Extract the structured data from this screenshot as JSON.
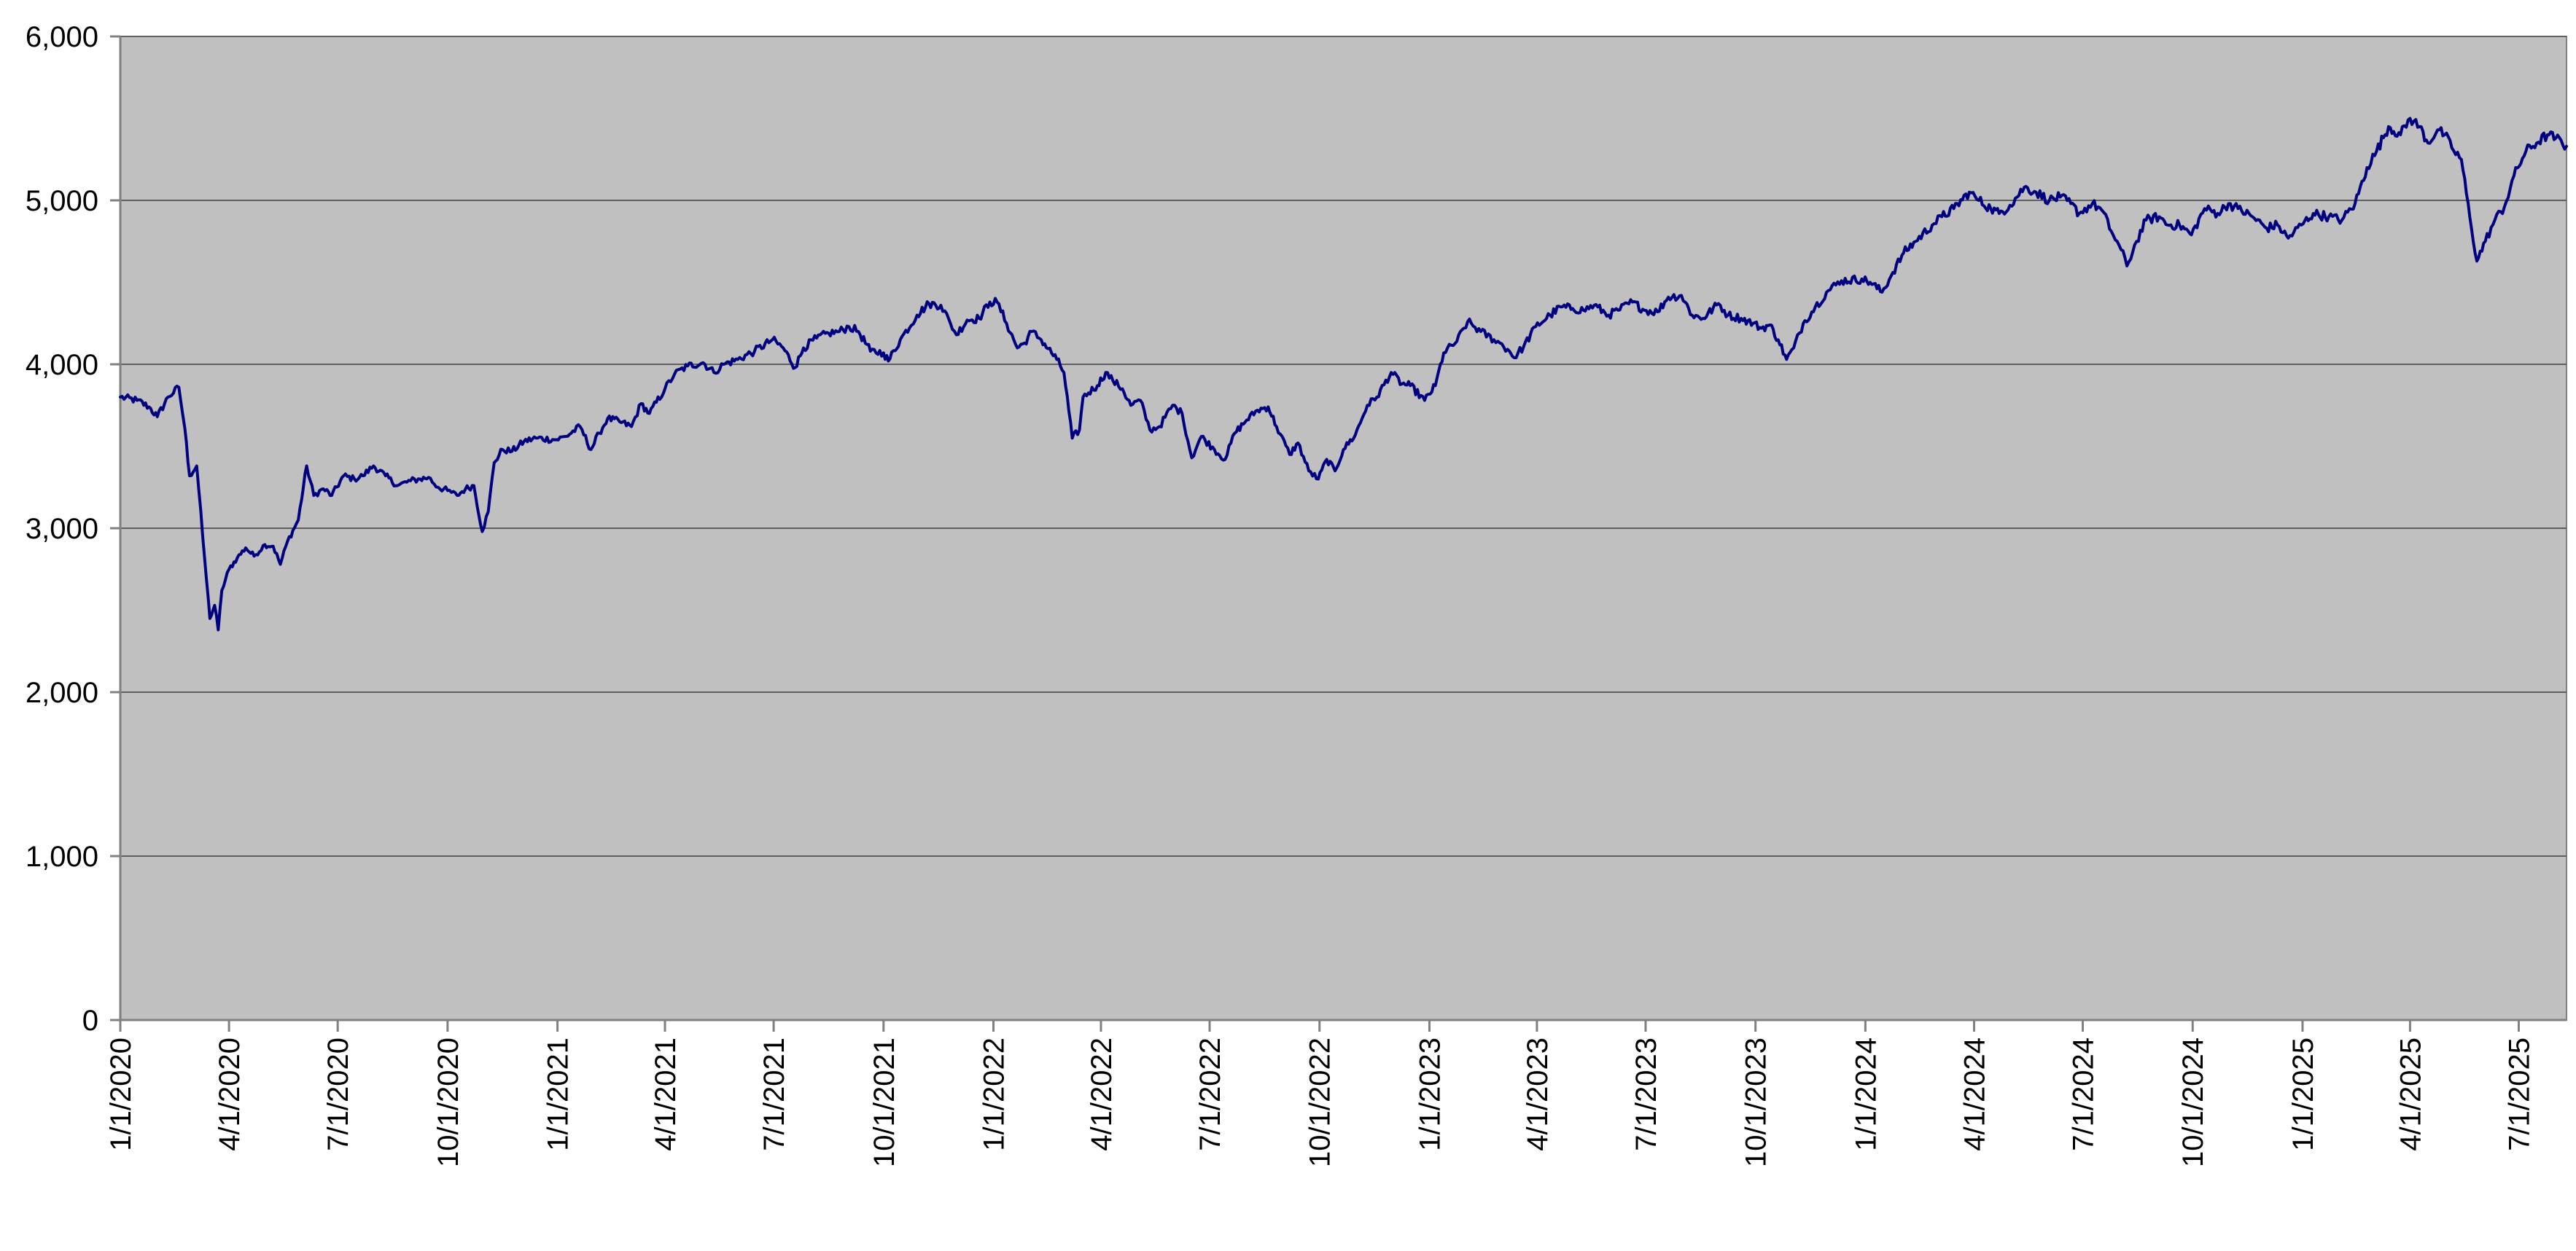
{
  "colors": {
    "plot_background": "#c0c0c0",
    "series_line": "#000080",
    "gridline": "#606060",
    "axis": "#808080"
  },
  "chart_data": {
    "type": "line",
    "title": "",
    "xlabel": "",
    "ylabel": "",
    "x_axis": {
      "type": "date",
      "range": [
        "2020-01-01",
        "2025-08-10"
      ],
      "tick_dates": [
        "2020-01-01",
        "2020-04-01",
        "2020-07-01",
        "2020-10-01",
        "2021-01-01",
        "2021-04-01",
        "2021-07-01",
        "2021-10-01",
        "2022-01-01",
        "2022-04-01",
        "2022-07-01",
        "2022-10-01",
        "2023-01-01",
        "2023-04-01",
        "2023-07-01",
        "2023-10-01",
        "2024-01-01",
        "2024-04-01",
        "2024-07-01",
        "2024-10-01",
        "2025-01-01",
        "2025-04-01",
        "2025-07-01"
      ],
      "tick_labels": [
        "1/1/2020",
        "4/1/2020",
        "7/1/2020",
        "10/1/2020",
        "1/1/2021",
        "4/1/2021",
        "7/1/2021",
        "10/1/2021",
        "1/1/2022",
        "4/1/2022",
        "7/1/2022",
        "10/1/2022",
        "1/1/2023",
        "4/1/2023",
        "7/1/2023",
        "10/1/2023",
        "1/1/2024",
        "4/1/2024",
        "7/1/2024",
        "10/1/2024",
        "1/1/2025",
        "4/1/2025",
        "7/1/2025"
      ],
      "label_orientation": "vertical"
    },
    "y_axis": {
      "range": [
        0,
        6000
      ],
      "ticks": [
        0,
        1000,
        2000,
        3000,
        4000,
        5000,
        6000
      ],
      "tick_labels": [
        "0",
        "1,000",
        "2,000",
        "3,000",
        "4,000",
        "5,000",
        "6,000"
      ]
    },
    "grid": {
      "horizontal": true,
      "vertical": false
    },
    "legend": "none",
    "series": [
      {
        "points": [
          [
            "2020-01-01",
            3800
          ],
          [
            "2020-01-15",
            3780
          ],
          [
            "2020-01-25",
            3740
          ],
          [
            "2020-02-01",
            3680
          ],
          [
            "2020-02-10",
            3800
          ],
          [
            "2020-02-19",
            3860
          ],
          [
            "2020-02-24",
            3610
          ],
          [
            "2020-02-28",
            3320
          ],
          [
            "2020-03-05",
            3380
          ],
          [
            "2020-03-10",
            2950
          ],
          [
            "2020-03-13",
            2700
          ],
          [
            "2020-03-16",
            2450
          ],
          [
            "2020-03-20",
            2530
          ],
          [
            "2020-03-23",
            2380
          ],
          [
            "2020-03-26",
            2620
          ],
          [
            "2020-04-01",
            2750
          ],
          [
            "2020-04-08",
            2820
          ],
          [
            "2020-04-15",
            2880
          ],
          [
            "2020-04-22",
            2830
          ],
          [
            "2020-05-01",
            2900
          ],
          [
            "2020-05-08",
            2890
          ],
          [
            "2020-05-14",
            2780
          ],
          [
            "2020-05-20",
            2920
          ],
          [
            "2020-05-29",
            3050
          ],
          [
            "2020-06-05",
            3380
          ],
          [
            "2020-06-11",
            3200
          ],
          [
            "2020-06-19",
            3240
          ],
          [
            "2020-06-26",
            3200
          ],
          [
            "2020-07-06",
            3320
          ],
          [
            "2020-07-15",
            3300
          ],
          [
            "2020-07-22",
            3320
          ],
          [
            "2020-07-31",
            3380
          ],
          [
            "2020-08-10",
            3320
          ],
          [
            "2020-08-20",
            3260
          ],
          [
            "2020-08-31",
            3290
          ],
          [
            "2020-09-08",
            3300
          ],
          [
            "2020-09-15",
            3310
          ],
          [
            "2020-09-23",
            3250
          ],
          [
            "2020-10-01",
            3230
          ],
          [
            "2020-10-09",
            3200
          ],
          [
            "2020-10-16",
            3240
          ],
          [
            "2020-10-23",
            3260
          ],
          [
            "2020-10-30",
            2980
          ],
          [
            "2020-11-04",
            3100
          ],
          [
            "2020-11-09",
            3400
          ],
          [
            "2020-11-16",
            3480
          ],
          [
            "2020-11-24",
            3470
          ],
          [
            "2020-12-04",
            3530
          ],
          [
            "2020-12-14",
            3550
          ],
          [
            "2020-12-31",
            3540
          ],
          [
            "2021-01-08",
            3560
          ],
          [
            "2021-01-20",
            3620
          ],
          [
            "2021-01-29",
            3480
          ],
          [
            "2021-02-05",
            3580
          ],
          [
            "2021-02-12",
            3670
          ],
          [
            "2021-02-22",
            3650
          ],
          [
            "2021-03-04",
            3620
          ],
          [
            "2021-03-12",
            3760
          ],
          [
            "2021-03-19",
            3700
          ],
          [
            "2021-04-01",
            3850
          ],
          [
            "2021-04-09",
            3940
          ],
          [
            "2021-04-20",
            3990
          ],
          [
            "2021-05-03",
            4010
          ],
          [
            "2021-05-12",
            3950
          ],
          [
            "2021-05-20",
            4000
          ],
          [
            "2021-06-01",
            4030
          ],
          [
            "2021-06-15",
            4080
          ],
          [
            "2021-06-30",
            4150
          ],
          [
            "2021-07-09",
            4100
          ],
          [
            "2021-07-19",
            3980
          ],
          [
            "2021-07-26",
            4100
          ],
          [
            "2021-08-06",
            4160
          ],
          [
            "2021-08-16",
            4190
          ],
          [
            "2021-08-25",
            4200
          ],
          [
            "2021-09-02",
            4230
          ],
          [
            "2021-09-10",
            4200
          ],
          [
            "2021-09-20",
            4080
          ],
          [
            "2021-10-01",
            4070
          ],
          [
            "2021-10-05",
            4020
          ],
          [
            "2021-10-15",
            4150
          ],
          [
            "2021-10-29",
            4300
          ],
          [
            "2021-11-08",
            4370
          ],
          [
            "2021-11-18",
            4360
          ],
          [
            "2021-11-26",
            4250
          ],
          [
            "2021-12-01",
            4180
          ],
          [
            "2021-12-10",
            4270
          ],
          [
            "2021-12-20",
            4280
          ],
          [
            "2021-12-29",
            4380
          ],
          [
            "2022-01-04",
            4380
          ],
          [
            "2022-01-12",
            4250
          ],
          [
            "2022-01-21",
            4100
          ],
          [
            "2022-01-27",
            4130
          ],
          [
            "2022-02-02",
            4200
          ],
          [
            "2022-02-10",
            4150
          ],
          [
            "2022-02-23",
            4030
          ],
          [
            "2022-03-01",
            3950
          ],
          [
            "2022-03-08",
            3550
          ],
          [
            "2022-03-14",
            3600
          ],
          [
            "2022-03-17",
            3800
          ],
          [
            "2022-03-29",
            3870
          ],
          [
            "2022-04-05",
            3950
          ],
          [
            "2022-04-11",
            3900
          ],
          [
            "2022-04-19",
            3850
          ],
          [
            "2022-04-26",
            3750
          ],
          [
            "2022-05-04",
            3780
          ],
          [
            "2022-05-12",
            3600
          ],
          [
            "2022-05-20",
            3620
          ],
          [
            "2022-05-31",
            3750
          ],
          [
            "2022-06-08",
            3700
          ],
          [
            "2022-06-16",
            3430
          ],
          [
            "2022-06-24",
            3560
          ],
          [
            "2022-07-05",
            3480
          ],
          [
            "2022-07-14",
            3420
          ],
          [
            "2022-07-22",
            3580
          ],
          [
            "2022-08-01",
            3660
          ],
          [
            "2022-08-10",
            3720
          ],
          [
            "2022-08-19",
            3740
          ],
          [
            "2022-08-26",
            3620
          ],
          [
            "2022-09-06",
            3450
          ],
          [
            "2022-09-13",
            3520
          ],
          [
            "2022-09-22",
            3350
          ],
          [
            "2022-09-30",
            3300
          ],
          [
            "2022-10-07",
            3420
          ],
          [
            "2022-10-14",
            3350
          ],
          [
            "2022-10-21",
            3480
          ],
          [
            "2022-10-31",
            3570
          ],
          [
            "2022-11-10",
            3750
          ],
          [
            "2022-11-18",
            3800
          ],
          [
            "2022-11-30",
            3950
          ],
          [
            "2022-12-09",
            3880
          ],
          [
            "2022-12-16",
            3870
          ],
          [
            "2022-12-28",
            3780
          ],
          [
            "2023-01-06",
            3870
          ],
          [
            "2023-01-13",
            4070
          ],
          [
            "2023-01-24",
            4140
          ],
          [
            "2023-02-02",
            4260
          ],
          [
            "2023-02-13",
            4200
          ],
          [
            "2023-02-24",
            4150
          ],
          [
            "2023-03-01",
            4130
          ],
          [
            "2023-03-09",
            4080
          ],
          [
            "2023-03-13",
            4040
          ],
          [
            "2023-03-21",
            4110
          ],
          [
            "2023-03-31",
            4230
          ],
          [
            "2023-04-12",
            4300
          ],
          [
            "2023-04-21",
            4350
          ],
          [
            "2023-05-01",
            4340
          ],
          [
            "2023-05-10",
            4330
          ],
          [
            "2023-05-19",
            4360
          ],
          [
            "2023-05-31",
            4300
          ],
          [
            "2023-06-08",
            4330
          ],
          [
            "2023-06-20",
            4380
          ],
          [
            "2023-06-30",
            4330
          ],
          [
            "2023-07-11",
            4320
          ],
          [
            "2023-07-20",
            4410
          ],
          [
            "2023-07-31",
            4420
          ],
          [
            "2023-08-09",
            4300
          ],
          [
            "2023-08-18",
            4280
          ],
          [
            "2023-08-31",
            4370
          ],
          [
            "2023-09-08",
            4300
          ],
          [
            "2023-09-19",
            4280
          ],
          [
            "2023-09-29",
            4250
          ],
          [
            "2023-10-06",
            4220
          ],
          [
            "2023-10-13",
            4240
          ],
          [
            "2023-10-20",
            4150
          ],
          [
            "2023-10-27",
            4030
          ],
          [
            "2023-11-02",
            4100
          ],
          [
            "2023-11-10",
            4250
          ],
          [
            "2023-11-20",
            4350
          ],
          [
            "2023-12-01",
            4450
          ],
          [
            "2023-12-12",
            4510
          ],
          [
            "2023-12-29",
            4520
          ],
          [
            "2024-01-05",
            4500
          ],
          [
            "2024-01-15",
            4440
          ],
          [
            "2024-01-24",
            4560
          ],
          [
            "2024-02-02",
            4680
          ],
          [
            "2024-02-12",
            4750
          ],
          [
            "2024-02-26",
            4850
          ],
          [
            "2024-03-05",
            4900
          ],
          [
            "2024-03-15",
            4950
          ],
          [
            "2024-03-28",
            5050
          ],
          [
            "2024-04-05",
            5000
          ],
          [
            "2024-04-15",
            4950
          ],
          [
            "2024-04-22",
            4920
          ],
          [
            "2024-05-01",
            4970
          ],
          [
            "2024-05-13",
            5080
          ],
          [
            "2024-05-23",
            5050
          ],
          [
            "2024-06-03",
            5000
          ],
          [
            "2024-06-12",
            5020
          ],
          [
            "2024-06-21",
            4980
          ],
          [
            "2024-06-28",
            4920
          ],
          [
            "2024-07-09",
            4980
          ],
          [
            "2024-07-17",
            4940
          ],
          [
            "2024-07-25",
            4810
          ],
          [
            "2024-08-02",
            4700
          ],
          [
            "2024-08-07",
            4600
          ],
          [
            "2024-08-15",
            4750
          ],
          [
            "2024-08-23",
            4880
          ],
          [
            "2024-09-03",
            4900
          ],
          [
            "2024-09-10",
            4850
          ],
          [
            "2024-09-20",
            4850
          ],
          [
            "2024-09-30",
            4790
          ],
          [
            "2024-10-11",
            4950
          ],
          [
            "2024-10-22",
            4920
          ],
          [
            "2024-10-31",
            4980
          ],
          [
            "2024-11-08",
            4950
          ],
          [
            "2024-11-20",
            4900
          ],
          [
            "2024-12-02",
            4830
          ],
          [
            "2024-12-11",
            4850
          ],
          [
            "2024-12-20",
            4770
          ],
          [
            "2024-12-31",
            4850
          ],
          [
            "2025-01-10",
            4920
          ],
          [
            "2025-01-23",
            4900
          ],
          [
            "2025-02-03",
            4880
          ],
          [
            "2025-02-14",
            4980
          ],
          [
            "2025-02-24",
            5200
          ],
          [
            "2025-03-04",
            5300
          ],
          [
            "2025-03-14",
            5450
          ],
          [
            "2025-03-24",
            5400
          ],
          [
            "2025-04-01",
            5500
          ],
          [
            "2025-04-09",
            5450
          ],
          [
            "2025-04-16",
            5350
          ],
          [
            "2025-04-24",
            5430
          ],
          [
            "2025-04-30",
            5400
          ],
          [
            "2025-05-06",
            5320
          ],
          [
            "2025-05-14",
            5250
          ],
          [
            "2025-05-21",
            4900
          ],
          [
            "2025-05-27",
            4630
          ],
          [
            "2025-06-03",
            4750
          ],
          [
            "2025-06-11",
            4880
          ],
          [
            "2025-06-19",
            4960
          ],
          [
            "2025-06-27",
            5150
          ],
          [
            "2025-07-07",
            5300
          ],
          [
            "2025-07-16",
            5350
          ],
          [
            "2025-07-25",
            5400
          ],
          [
            "2025-08-01",
            5380
          ],
          [
            "2025-08-10",
            5330
          ]
        ]
      }
    ]
  }
}
